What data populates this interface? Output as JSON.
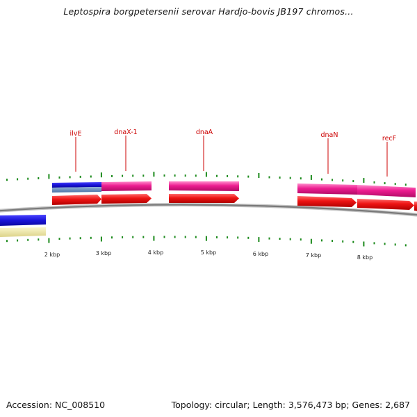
{
  "title": "Leptospira borgpetersenii serovar Hardjo-bovis JB197 chromos...",
  "footer": {
    "accession": "Accession: NC_008510",
    "summary": "Topology: circular; Length: 3,576,473 bp; Genes: 2,687"
  },
  "genes": [
    {
      "name": "ilvE"
    },
    {
      "name": "dnaX-1"
    },
    {
      "name": "dnaA"
    },
    {
      "name": "dnaN"
    },
    {
      "name": "recF"
    }
  ],
  "scale_labels": [
    "2 kbp",
    "3 kbp",
    "4 kbp",
    "5 kbp",
    "6 kbp",
    "7 kbp",
    "8 kbp"
  ],
  "colors": {
    "title": "#111111",
    "gene_label": "#cc0000",
    "cds_arrow": "#e81010",
    "feature_blue": "#1a14d8",
    "feature_steel": "#5f86b8",
    "feature_pink": "#e8188c",
    "feature_cream": "#eee8a8",
    "backbone": "#8a8a8a",
    "tick": "#1c8a1c"
  }
}
